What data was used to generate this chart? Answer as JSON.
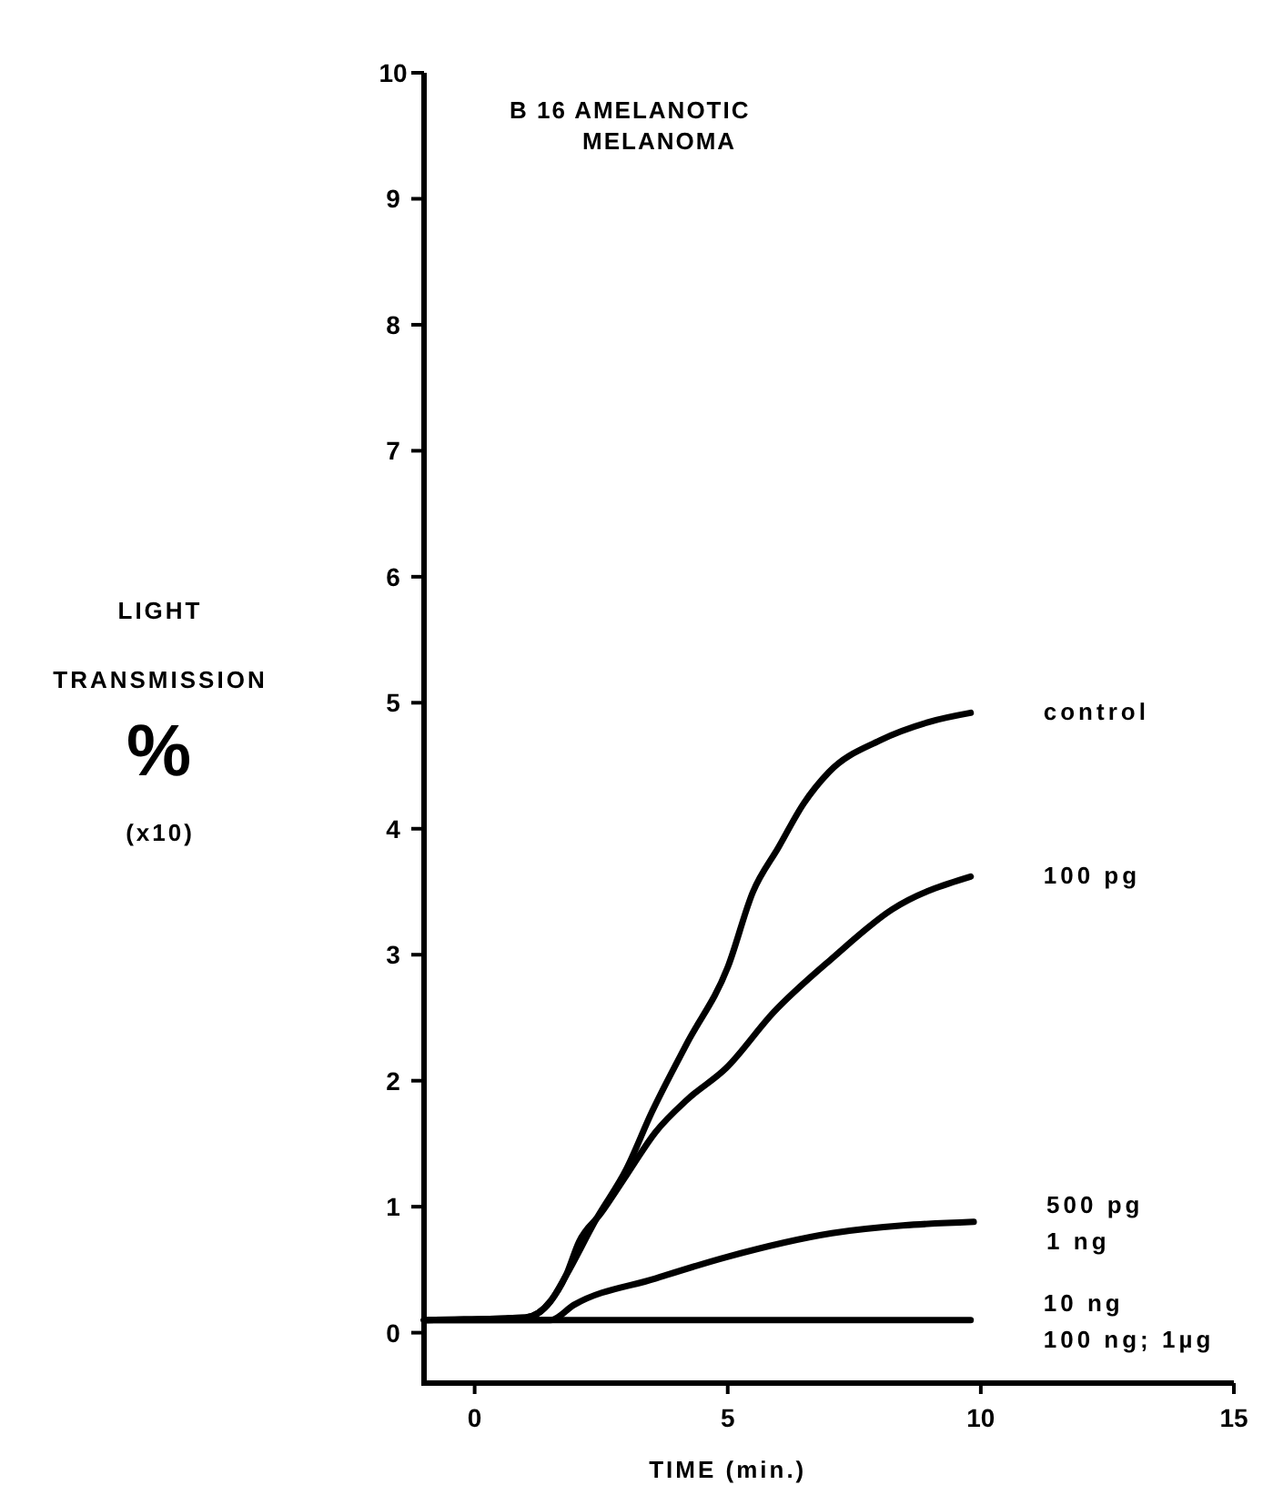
{
  "chart_data": {
    "type": "line",
    "title": "B 16 AMELANOTIC\nMELANOMA",
    "xlabel": "TIME (min.)",
    "ylabel": "LIGHT\nTRANSMISSION\n%\n(x10)",
    "xlim": [
      -1,
      15
    ],
    "ylim": [
      -0.4,
      10
    ],
    "xticks": [
      0,
      5,
      10,
      15
    ],
    "yticks": [
      0,
      1,
      2,
      3,
      4,
      5,
      6,
      7,
      8,
      9,
      10
    ],
    "grid": false,
    "marker": "none",
    "line_style": "solid",
    "series": [
      {
        "name": "control",
        "color": "#000000",
        "x": [
          -1,
          1,
          1.5,
          1.8,
          2.4,
          3,
          3.5,
          4.2,
          5,
          5.5,
          6,
          6.5,
          7,
          8,
          9,
          9.8
        ],
        "values": [
          0.1,
          0.12,
          0.25,
          0.45,
          0.9,
          1.3,
          1.75,
          2.3,
          2.9,
          3.5,
          3.85,
          4.2,
          4.45,
          4.7,
          4.85,
          4.92
        ]
      },
      {
        "name": "100 pg",
        "color": "#000000",
        "x": [
          -1,
          1,
          1.5,
          1.8,
          2.06,
          2.5,
          3,
          3.57,
          4.2,
          4.97,
          5.9,
          7.06,
          8.25,
          9.8
        ],
        "values": [
          0.1,
          0.12,
          0.25,
          0.45,
          0.72,
          0.95,
          1.25,
          1.59,
          1.85,
          2.1,
          2.54,
          2.97,
          3.36,
          3.62
        ]
      },
      {
        "name": "500 pg\n1 ng",
        "color": "#000000",
        "x": [
          -1,
          1.5,
          1.96,
          3.57,
          4.97,
          7.06,
          9.86
        ],
        "values": [
          0.1,
          0.1,
          0.22,
          0.43,
          0.6,
          0.79,
          0.88
        ]
      },
      {
        "name": "10 ng\n100 ng; 1µg",
        "color": "#000000",
        "x": [
          -1,
          1.5,
          5,
          9.8
        ],
        "values": [
          0.1,
          0.1,
          0.1,
          0.1
        ]
      }
    ]
  }
}
